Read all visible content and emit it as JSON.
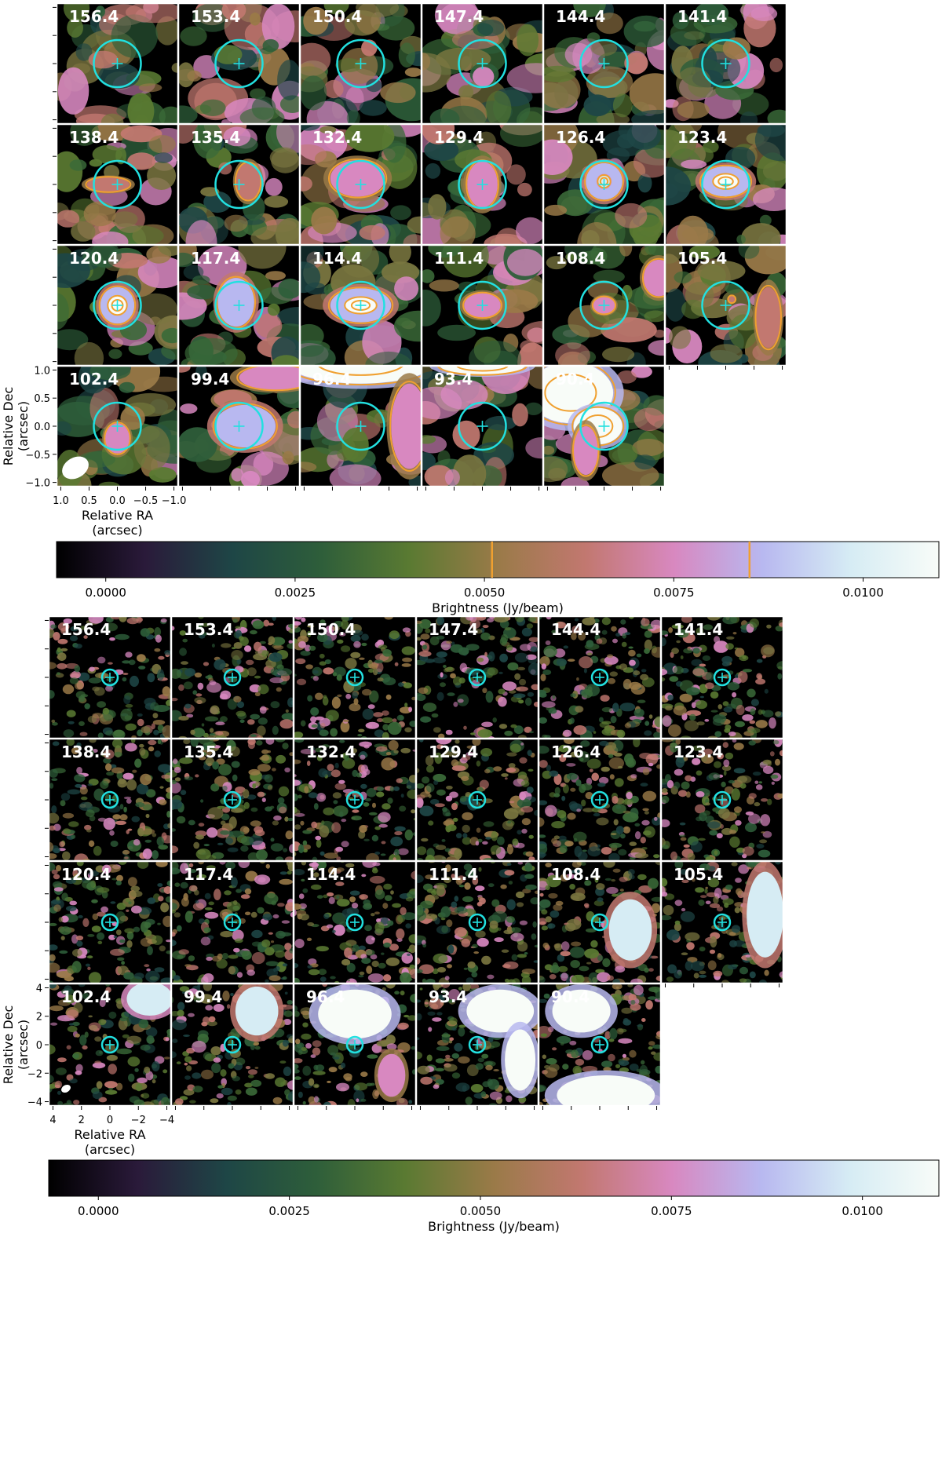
{
  "chart_data": [
    {
      "type": "heatmap",
      "title": "",
      "channels": [
        "156.4",
        "153.4",
        "150.4",
        "147.4",
        "144.4",
        "141.4",
        "138.4",
        "135.4",
        "132.4",
        "129.4",
        "126.4",
        "123.4",
        "120.4",
        "117.4",
        "114.4",
        "111.4",
        "108.4",
        "105.4",
        "102.4",
        "99.4",
        "96.4",
        "93.4",
        "90.4"
      ],
      "xlabel": [
        "Relative RA",
        "(arcsec)"
      ],
      "ylabel": [
        "Relative Dec",
        "(arcsec)"
      ],
      "xlim": [
        1.0,
        -1.0
      ],
      "ylim": [
        -1.0,
        1.0
      ],
      "x_ticks": [
        "1.0",
        "0.5",
        "0.0",
        "−0.5",
        "−1.0"
      ],
      "y_ticks": [
        "1.0",
        "0.5",
        "0.0",
        "−0.5",
        "−1.0"
      ],
      "colorbar": {
        "label": "Brightness (Jy/beam)",
        "range": [
          -0.00065,
          0.011
        ],
        "ticks": [
          "0.0000",
          "0.0025",
          "0.0050",
          "0.0075",
          "0.0100"
        ],
        "contour_levels": [
          0.0051,
          0.0085
        ]
      }
    },
    {
      "type": "heatmap",
      "title": "",
      "channels": [
        "156.4",
        "153.4",
        "150.4",
        "147.4",
        "144.4",
        "141.4",
        "138.4",
        "135.4",
        "132.4",
        "129.4",
        "126.4",
        "123.4",
        "120.4",
        "117.4",
        "114.4",
        "111.4",
        "108.4",
        "105.4",
        "102.4",
        "99.4",
        "96.4",
        "93.4",
        "90.4"
      ],
      "xlabel": [
        "Relative RA",
        "(arcsec)"
      ],
      "ylabel": [
        "Relative Dec",
        "(arcsec)"
      ],
      "xlim": [
        4,
        -4
      ],
      "ylim": [
        -4,
        4
      ],
      "x_ticks": [
        "4",
        "2",
        "0",
        "−2",
        "−4"
      ],
      "y_ticks": [
        "4",
        "2",
        "0",
        "−2",
        "−4"
      ],
      "colorbar": {
        "label": "Brightness (Jy/beam)",
        "range": [
          -0.00065,
          0.011
        ],
        "ticks": [
          "0.0000",
          "0.0025",
          "0.0050",
          "0.0075",
          "0.0100"
        ],
        "contour_levels": []
      }
    }
  ],
  "colors": {
    "circle": "#22e0e0",
    "contour": "#f0a030",
    "cmap": [
      "#000000",
      "#2a1a3a",
      "#1e4646",
      "#2e5e3a",
      "#5a7a32",
      "#9a7a48",
      "#c27870",
      "#d888c0",
      "#b8b8f0",
      "#d6ecf4",
      "#f8fcf8"
    ]
  }
}
